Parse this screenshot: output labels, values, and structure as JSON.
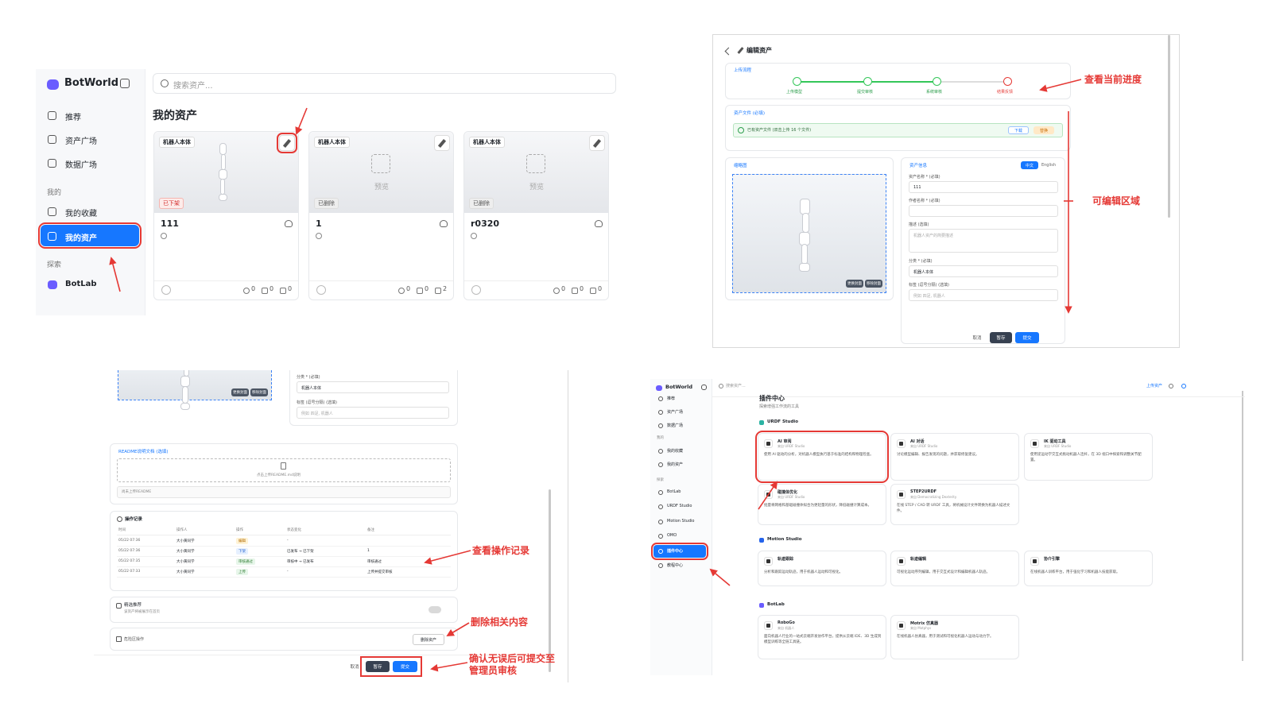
{
  "panel1": {
    "brand": "BotWorld",
    "search_placeholder": "搜索资产...",
    "nav": [
      "推荐",
      "资产广场",
      "数据广场"
    ],
    "mine_label": "我的",
    "mine_nav": [
      "我的收藏",
      "我的资产"
    ],
    "explore_label": "探索",
    "explore_nav": [
      "BotLab"
    ],
    "title": "我的资产",
    "cards": [
      {
        "tag": "机器人本体",
        "status": "已下架",
        "name": "111",
        "likes": 0,
        "stars": 0,
        "downloads": 0
      },
      {
        "tag": "机器人本体",
        "status": "已删除",
        "preview": "预览",
        "name": "1",
        "likes": 0,
        "stars": 0,
        "downloads": 2
      },
      {
        "tag": "机器人本体",
        "status": "已删除",
        "preview": "预览",
        "name": "r0320",
        "likes": 0,
        "stars": 0,
        "downloads": 0
      }
    ]
  },
  "panel2": {
    "title": "编辑资产",
    "progress_label": "上传流程",
    "steps": [
      "上传模型",
      "提交审核",
      "系统审核",
      "结果反馈"
    ],
    "files_label": "资产文件 (必填)",
    "file_status": "已有资产文件 (双击上传 16 个文件)",
    "download": "下载",
    "replace": "替换",
    "thumb_label": "缩略图",
    "thumb_buttons": [
      "更换封面",
      "移除封面"
    ],
    "info_label": "资产信息",
    "languages": [
      "中文",
      "English"
    ],
    "fields": [
      {
        "label": "资产名称 * (必填)",
        "value": "111"
      },
      {
        "label": "作者名称 * (必填)"
      },
      {
        "label": "描述 (选填)",
        "placeholder": "机器人资产的简要描述"
      },
      {
        "label": "分类 * (必填)",
        "value": "机器人本体"
      },
      {
        "label": "标签 (逗号分隔) (选填)",
        "placeholder": "例如 四足, 机器人"
      }
    ],
    "buttons": [
      "取消",
      "暂存",
      "提交"
    ]
  },
  "panel3": {
    "thumb_buttons": [
      "更换封面",
      "移除封面"
    ],
    "fields": [
      {
        "label": "分类 * (必填)",
        "value": "机器人本体"
      },
      {
        "label": "标签 (逗号分隔) (选填)",
        "placeholder": "例如 四足, 机器人"
      }
    ],
    "readme_label": "README说明文档 (选填)",
    "readme_upload": "点击上传README.md说明",
    "readme_empty": "尚未上传README",
    "log_title": "操作记录",
    "log_headers": [
      "时间",
      "操作人",
      "操作",
      "状态变化",
      "备注"
    ],
    "log_rows": [
      {
        "time": "05/22 07:36",
        "user": "大小黄同学",
        "action": "编辑",
        "change": "-"
      },
      {
        "time": "05/22 07:36",
        "user": "大小黄同学",
        "action": "下架",
        "change": "已发布 → 已下架",
        "note": "1"
      },
      {
        "time": "05/22 07:35",
        "user": "大小黄同学",
        "action": "审核通过",
        "change": "审核中 → 已发布",
        "note": "审核通过"
      },
      {
        "time": "05/22 07:33",
        "user": "大小黄同学",
        "action": "上传",
        "change": "-",
        "note": "上传并提交审核"
      }
    ],
    "featured_title": "精选推荐",
    "featured_desc": "该资产将被展示在首页",
    "danger_title": "危险区操作",
    "delete": "删除资产",
    "buttons": [
      "取消",
      "暂存",
      "提交"
    ]
  },
  "panel4": {
    "brand": "BotWorld",
    "search_placeholder": "搜索资产...",
    "upload": "上传资产",
    "nav": [
      "推荐",
      "资产广场",
      "数据广场"
    ],
    "mine_label": "我的",
    "mine_nav": [
      "我的收藏",
      "我的资产"
    ],
    "explore_label": "探索",
    "explore_nav": [
      "BotLab",
      "URDF Studio",
      "Motion Studio",
      "OMO",
      "插件中心",
      "教程中心"
    ],
    "title": "插件中心",
    "subtitle": "探索增强工作流的工具",
    "groups": [
      {
        "name": "URDF Studio",
        "plugins": [
          {
            "name": "AI 审阅",
            "source": "来自 URDF Studio",
            "desc": "使用 AI 驱动的分析，对机器人模型执行基于标准的结构和物理检查。"
          },
          {
            "name": "AI 对话",
            "source": "来自 URDF Studio",
            "desc": "讨论模型编辑、报告发现的问题，并获取修复建议。"
          },
          {
            "name": "IK 驱动工具",
            "source": "来自 URDF Studio",
            "desc": "使用逆运动学交互式拖动机器人连杆，在 3D 视口中探索和调整关节配置。"
          },
          {
            "name": "碰撞体优化",
            "source": "来自 URDF Studio",
            "desc": "批量将网格和基础碰撞体拟合为更轻量的形状，降低碰撞计算成本。"
          },
          {
            "name": "STEP2URDF",
            "source": "来自 Democratizing Dexterity",
            "desc": "在线 STEP / CAD 转 URDF 工具，将机械设计文件转换为机器人描述文件。"
          }
        ]
      },
      {
        "name": "Motion Studio",
        "plugins": [
          {
            "name": "轨迹跟踪",
            "desc": "分析和跟踪运动轨迹，用于机器人运动和可视化。"
          },
          {
            "name": "轨迹编辑",
            "desc": "可视化运动序列编辑，用于交互式设计和编辑机器人轨迹。"
          },
          {
            "name": "协介引擎",
            "desc": "在线机器人训练平台，用于强化学习和机器人技能获取。"
          }
        ]
      },
      {
        "name": "BotLab",
        "plugins": [
          {
            "name": "RoboGo",
            "source": "来自 机器人",
            "desc": "面向机器人行业的一站式云端开发协作平台，提供从云端 IDE、3D 生成到模型训练等全链工具链。"
          },
          {
            "name": "Motrix 仿真器",
            "source": "来自 Motphys",
            "desc": "在线机器人仿真器，用于测试和可视化机器人运动与动力学。"
          }
        ]
      }
    ]
  },
  "annotations": [
    "查看当前进度",
    "可编辑区域",
    "查看操作记录",
    "删除相关内容",
    "确认无误后可提交至管理员审核"
  ]
}
